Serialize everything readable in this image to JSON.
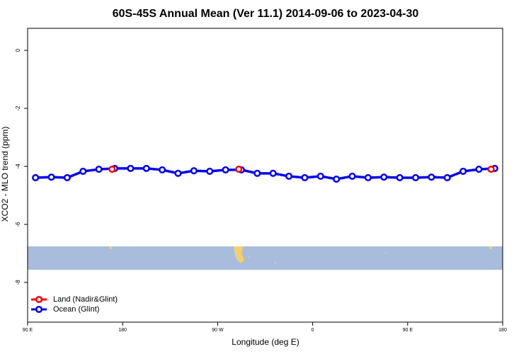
{
  "chart_data": {
    "type": "line",
    "title": "60S-45S Annual Mean (Ver 11.1)   2014-09-06 to 2023-04-30",
    "x_label": "Longitude (deg E)",
    "y_label": "XCO2 - MLO trend (ppm)",
    "xlim": [
      90,
      540
    ],
    "ylim": [
      -9.37,
      0.76
    ],
    "xticks": [
      {
        "value": 90,
        "label": "90 E"
      },
      180,
      {
        "value": 270,
        "label": "90 W"
      },
      {
        "value": 360,
        "label": "0"
      },
      {
        "value": 450,
        "label": "90 E"
      },
      {
        "value": 540,
        "label": "180"
      }
    ],
    "yticks": [
      0,
      -2,
      -4,
      -6,
      -8
    ],
    "legend": "bottom-left",
    "series": [
      {
        "name": "Land (Nadir&Glint)",
        "color": "#ff0000",
        "markers_only": true,
        "x": [
          170,
          290,
          529
        ],
        "values": [
          -4.1,
          -4.1,
          -4.1
        ]
      },
      {
        "name": "Ocean (Glint)",
        "color": "#0000ee",
        "markers_only": false,
        "x": [
          97.5,
          112.5,
          127.5,
          142.5,
          157.5,
          172.5,
          187.5,
          202.5,
          217.5,
          232.5,
          247.5,
          262.5,
          277.5,
          292.5,
          307.5,
          322.5,
          337.5,
          352.5,
          367.5,
          382.5,
          397.5,
          412.5,
          427.5,
          442.5,
          457.5,
          472.5,
          487.5,
          502.5,
          517.5,
          532.5
        ],
        "values": [
          -4.39,
          -4.37,
          -4.39,
          -4.17,
          -4.1,
          -4.07,
          -4.07,
          -4.07,
          -4.12,
          -4.24,
          -4.15,
          -4.17,
          -4.12,
          -4.12,
          -4.24,
          -4.24,
          -4.34,
          -4.39,
          -4.34,
          -4.44,
          -4.34,
          -4.39,
          -4.37,
          -4.39,
          -4.39,
          -4.37,
          -4.39,
          -4.17,
          -4.1,
          -4.07
        ]
      }
    ]
  }
}
